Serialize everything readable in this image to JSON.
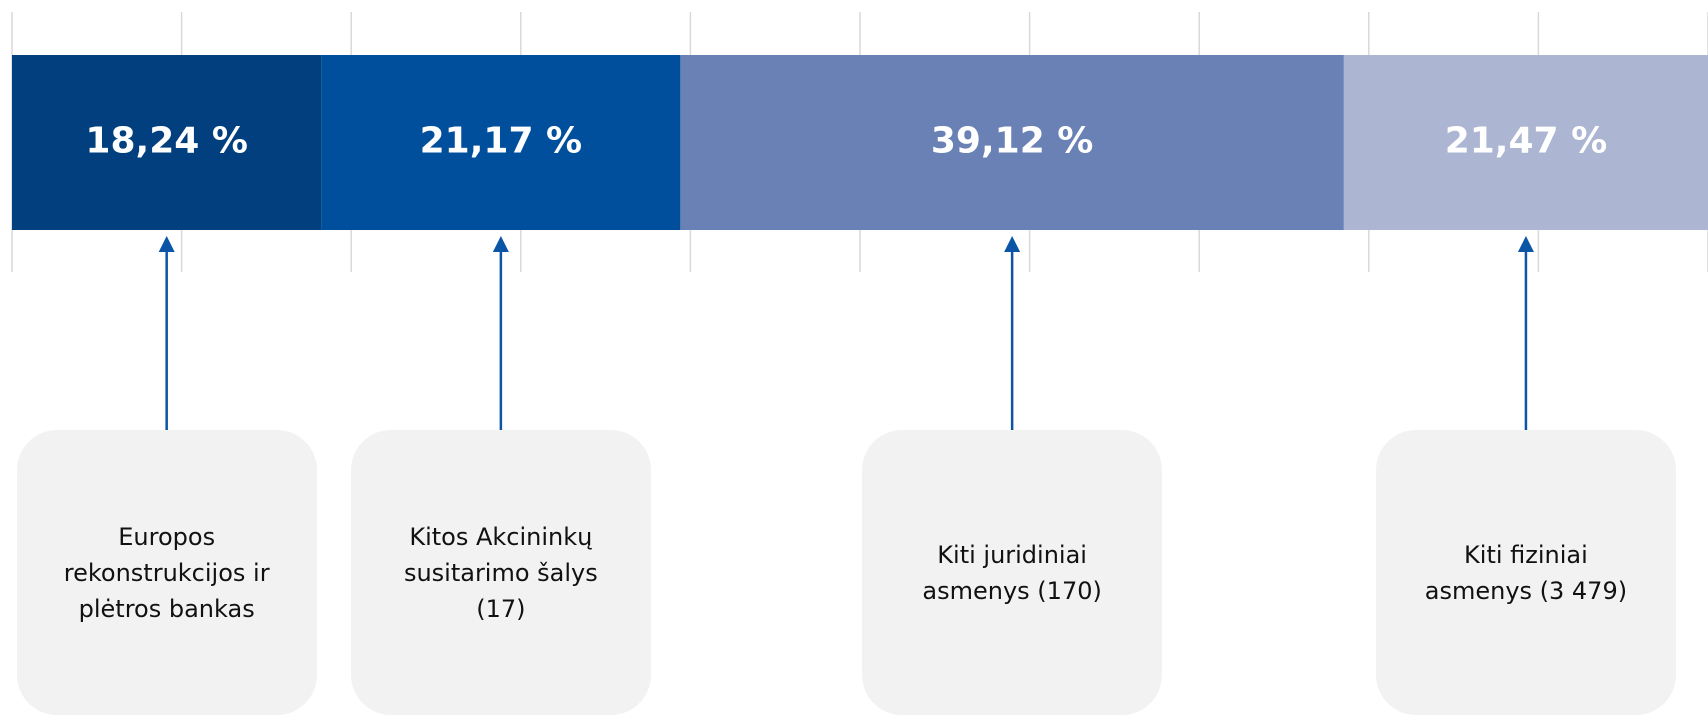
{
  "chart_data": {
    "type": "stacked_bar",
    "categories": [
      "Europos rekonstrukcijos ir plėtros bankas",
      "Kitos Akcininkų susitarimo šalys (17)",
      "Kiti juridiniai asmenys (170)",
      "Kiti fiziniai asmenys (3 479)"
    ],
    "values": [
      18.24,
      21.17,
      39.12,
      21.47
    ],
    "value_labels": [
      "18,24 %",
      "21,17 %",
      "39,12 %",
      "21,47 %"
    ],
    "colors": [
      "#023f7e",
      "#004f9d",
      "#6a81b5",
      "#acb6d3"
    ],
    "xlim": [
      0,
      100
    ],
    "xticks": [
      0,
      10,
      20,
      30,
      40,
      50,
      60,
      70,
      80,
      90,
      100
    ],
    "grid": true
  }
}
